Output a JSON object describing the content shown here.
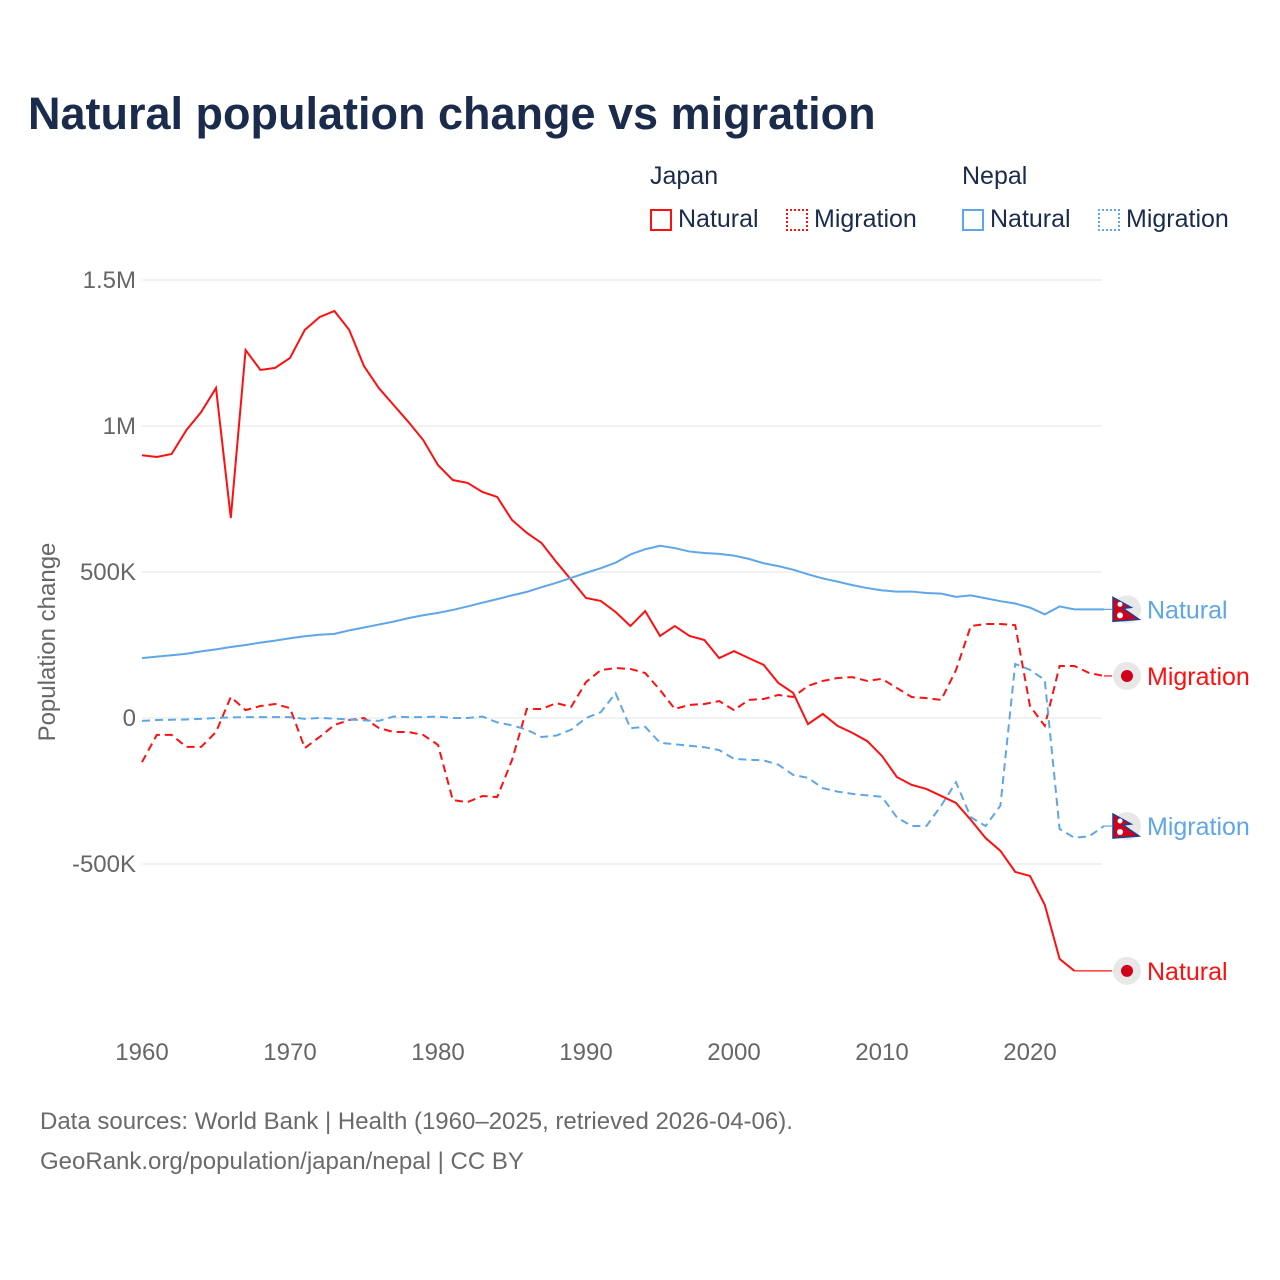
{
  "title": "Natural population change vs migration",
  "legend": {
    "groups": [
      {
        "name": "Japan",
        "color": "#ff1010"
      },
      {
        "name": "Nepal",
        "color": "#5fa6e8"
      }
    ],
    "items": [
      {
        "label": "Natural",
        "style": "solid",
        "color": "#ff1010"
      },
      {
        "label": "Migration",
        "style": "dotted",
        "color": "#ff1010"
      },
      {
        "label": "Natural",
        "style": "solid",
        "color": "#5fa6e8"
      },
      {
        "label": "Migration",
        "style": "dotted",
        "color": "#5fa6e8"
      }
    ]
  },
  "footer": {
    "line1": "Data sources: World Bank | Health (1960–2025, retrieved 2026-04-06).",
    "line2": "GeoRank.org/population/japan/nepal | CC BY"
  },
  "chart_data": {
    "type": "line",
    "title": "Natural population change vs migration",
    "ylabel": "Population change",
    "xlabel": "",
    "xlim": [
      1960,
      2025
    ],
    "ylim": [
      -1000000,
      1500000
    ],
    "xticks": [
      1960,
      1970,
      1980,
      1990,
      2000,
      2010,
      2020
    ],
    "xtick_labels": [
      "1960",
      "1970",
      "1980",
      "1990",
      "2000",
      "2010",
      "2020"
    ],
    "yticks": [
      1500000,
      1000000,
      500000,
      0,
      -500000
    ],
    "ytick_labels": [
      "1.5M",
      "1M",
      "500K",
      "0",
      "-500K"
    ],
    "grid": true,
    "unit": "thousands",
    "series": [
      {
        "name": "Japan Natural",
        "label": "Natural",
        "color": "#ff1010",
        "dash": "solid",
        "flag": "japan",
        "start": 1960,
        "values": [
          900,
          894,
          904,
          986,
          1048,
          1130,
          685,
          1260,
          1192,
          1199,
          1233,
          1329,
          1373,
          1394,
          1329,
          1205,
          1130,
          1072,
          1014,
          952,
          866,
          815,
          805,
          774,
          757,
          678,
          634,
          599,
          534,
          473,
          411,
          401,
          363,
          315,
          366,
          281,
          315,
          281,
          267,
          205,
          229,
          205,
          182,
          120,
          86,
          -21,
          14,
          -27,
          -51,
          -79,
          -130,
          -202,
          -229,
          -243,
          -267,
          -291,
          -349,
          -411,
          -455,
          -527,
          -541,
          -640,
          -825,
          -866
        ]
      },
      {
        "name": "Japan Migration",
        "label": "Migration",
        "color": "#ff1010",
        "dash": "dashed",
        "flag": "japan",
        "start": 1960,
        "values": [
          -151,
          -58,
          -58,
          -99,
          -99,
          -48,
          72,
          27,
          41,
          48,
          34,
          -103,
          -65,
          -24,
          -7,
          0,
          -34,
          -48,
          -48,
          -58,
          -92,
          -281,
          -288,
          -267,
          -271,
          -144,
          31,
          31,
          51,
          38,
          123,
          164,
          171,
          168,
          154,
          96,
          31,
          45,
          48,
          58,
          27,
          62,
          65,
          79,
          72,
          110,
          127,
          137,
          140,
          127,
          134,
          103,
          72,
          68,
          62,
          164,
          315,
          322,
          322,
          318,
          41,
          -27,
          178,
          178,
          154,
          144
        ]
      },
      {
        "name": "Nepal Natural",
        "label": "Natural",
        "color": "#5fa6e8",
        "dash": "solid",
        "flag": "nepal",
        "start": 1960,
        "values": [
          205,
          210,
          215,
          220,
          228,
          235,
          243,
          250,
          258,
          265,
          273,
          280,
          285,
          288,
          300,
          310,
          320,
          330,
          342,
          352,
          360,
          370,
          382,
          395,
          407,
          420,
          432,
          448,
          463,
          480,
          497,
          513,
          532,
          560,
          578,
          590,
          582,
          570,
          565,
          562,
          556,
          545,
          530,
          520,
          508,
          492,
          478,
          467,
          455,
          445,
          437,
          433,
          433,
          428,
          426,
          415,
          420,
          410,
          400,
          392,
          378,
          355,
          382,
          372,
          372,
          372
        ]
      },
      {
        "name": "Nepal Migration",
        "label": "Migration",
        "color": "#5fa6e8",
        "dash": "dashed",
        "flag": "nepal",
        "start": 1960,
        "values": [
          -10,
          -7,
          -6,
          -5,
          -3,
          0,
          2,
          3,
          3,
          3,
          3,
          -3,
          0,
          -2,
          -5,
          -8,
          -10,
          5,
          3,
          3,
          5,
          0,
          0,
          5,
          -15,
          -25,
          -40,
          -65,
          -60,
          -40,
          0,
          20,
          85,
          -35,
          -30,
          -85,
          -90,
          -95,
          -100,
          -110,
          -140,
          -143,
          -145,
          -160,
          -195,
          -205,
          -240,
          -252,
          -260,
          -265,
          -270,
          -340,
          -370,
          -370,
          -300,
          -220,
          -340,
          -370,
          -300,
          185,
          165,
          130,
          -380,
          -410,
          -405,
          -370
        ]
      }
    ]
  }
}
